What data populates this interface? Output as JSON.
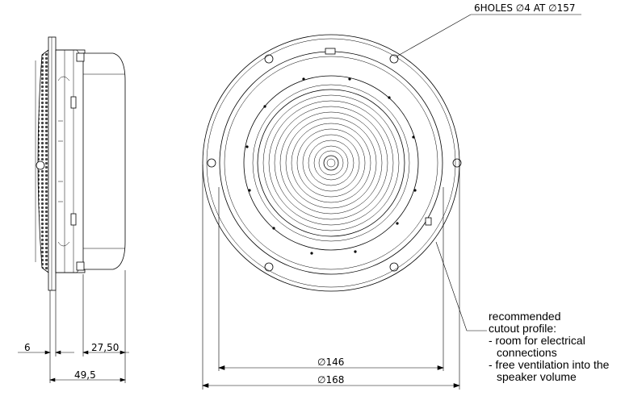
{
  "callouts": {
    "holes": "6HOLES ∅4 AT ∅157",
    "note_lines": [
      "recommended",
      "cutout profile:",
      "- room for electrical",
      "  connections",
      "- free ventilation into the",
      "  speaker volume"
    ]
  },
  "dimensions": {
    "grille_depth": "6",
    "rear_depth": "27,50",
    "total_depth": "49,5",
    "cutout_diameter": "∅146",
    "outer_diameter": "∅168"
  }
}
